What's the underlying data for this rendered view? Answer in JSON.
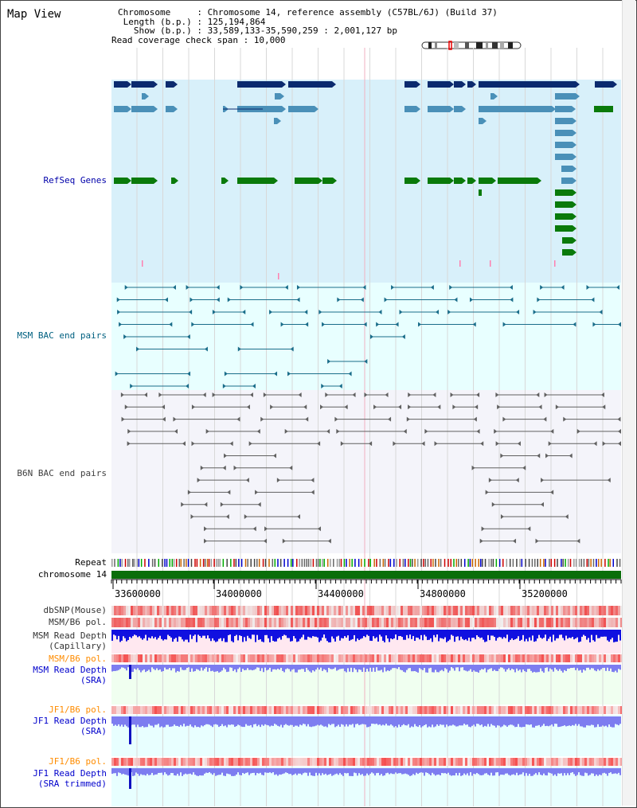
{
  "header": {
    "view_title": "Map View",
    "chromosome_line": "Chromosome     : Chromosome 14, reference assembly (C57BL/6J) (Build 37)",
    "length_line": " Length (b.p.) : 125,194,864",
    "show_line": "   Show (b.p.) : 33,589,133-35,590,259 : 2,001,127 bp",
    "coverage_line": "Read coverage check span : 10,000"
  },
  "tracks": {
    "refseq": {
      "label": "RefSeq Genes",
      "color": "#0000aa"
    },
    "msm_bac": {
      "label": "MSM BAC end pairs",
      "color": "#006080"
    },
    "b6n_bac": {
      "label": "B6N BAC end pairs",
      "color": "#404040"
    },
    "repeat": {
      "label": "Repeat"
    },
    "chromosome": {
      "label": "chromosome 14"
    },
    "dbsnp": {
      "label": "dbSNP(Mouse)"
    },
    "msm_b6_pol": {
      "label": "MSM/B6 pol."
    },
    "msm_read_depth_cap": {
      "label": "MSM Read Depth\n(Capillary)"
    },
    "msm_b6_pol_sra": {
      "label": "MSM/B6 pol.",
      "color": "#ff8c00"
    },
    "msm_read_depth_sra": {
      "label": "MSM Read Depth\n(SRA)",
      "color": "#0000cc"
    },
    "jf1_b6_pol": {
      "label": "JF1/B6 pol.",
      "color": "#ff8c00"
    },
    "jf1_read_depth_sra": {
      "label": "JF1 Read Depth\n(SRA)",
      "color": "#0000cc"
    },
    "jf1_b6_pol_trim": {
      "label": "JF1/B6 pol.",
      "color": "#ff8c00"
    },
    "jf1_read_depth_trim": {
      "label": "JF1 Read Depth\n(SRA trimmed)",
      "color": "#0000cc"
    }
  },
  "axis": {
    "ticks": [
      "33600000",
      "34000000",
      "34400000",
      "34800000",
      "35200000"
    ]
  },
  "colors": {
    "refseq_bg": "#d8f0fa",
    "msm_bg": "#e8ffff",
    "b6n_bg": "#f4f4fa",
    "gene_dark": "#0b2a6e",
    "gene_mid": "#4a90b8",
    "gene_green": "#0a7a0a",
    "chromosome_bar": "#0a6e0a",
    "depth_blue": "#1010e0",
    "depth_light": "#7d7df0"
  }
}
